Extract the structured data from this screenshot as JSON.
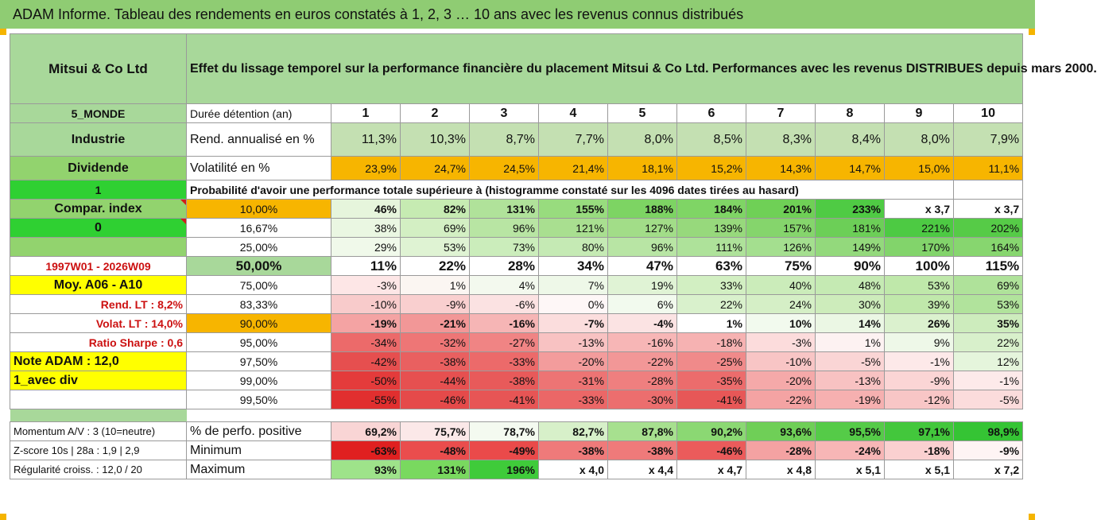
{
  "header": {
    "banner": "ADAM Informe. Tableau des rendements en euros constatés à 1, 2, 3 … 10 ans avec les revenus connus distribués"
  },
  "stock": {
    "name": "Mitsui & Co Ltd",
    "description": "Effet du lissage temporel sur la performance financière du placement Mitsui & Co Ltd. Performances avec les revenus DISTRIBUES depuis mars 2000."
  },
  "left": {
    "region": "5_MONDE",
    "sector": "Industrie",
    "type": "Dividende",
    "flag1": "1",
    "compar_label": "Compar. index",
    "flag0": "0",
    "period": "1997W01 - 2026W09",
    "moy": "Moy. A06 - A10",
    "rend_lt": "Rend. LT :    8,2%",
    "volat_lt": "Volat. LT :    14,0%",
    "sharpe": "Ratio Sharpe :    0,6",
    "note": "Note ADAM : 12,0",
    "avec_div": "1_avec div"
  },
  "years_label": "Durée détention (an)",
  "years": [
    "1",
    "2",
    "3",
    "4",
    "5",
    "6",
    "7",
    "8",
    "9",
    "10"
  ],
  "rend": {
    "label": "Rend. annualisé en %",
    "values": [
      "11,3%",
      "10,3%",
      "8,7%",
      "7,7%",
      "8,0%",
      "8,5%",
      "8,3%",
      "8,4%",
      "8,0%",
      "7,9%"
    ]
  },
  "vol": {
    "label": "Volatilité en %",
    "values": [
      "23,9%",
      "24,7%",
      "24,5%",
      "21,4%",
      "18,1%",
      "15,2%",
      "14,3%",
      "14,7%",
      "15,0%",
      "11,1%"
    ]
  },
  "prob_title": "Probabilité d'avoir une performance totale supérieure à (histogramme constaté sur les 4096 dates tirées au hasard)",
  "prob_rows": [
    {
      "p": "10,00%",
      "v": [
        "46%",
        "82%",
        "131%",
        "155%",
        "188%",
        "184%",
        "201%",
        "233%",
        "x 3,7",
        "x 3,7"
      ]
    },
    {
      "p": "16,67%",
      "v": [
        "38%",
        "69%",
        "96%",
        "121%",
        "127%",
        "139%",
        "157%",
        "181%",
        "221%",
        "202%"
      ]
    },
    {
      "p": "25,00%",
      "v": [
        "29%",
        "53%",
        "73%",
        "80%",
        "96%",
        "111%",
        "126%",
        "149%",
        "170%",
        "164%"
      ]
    },
    {
      "p": "50,00%",
      "v": [
        "11%",
        "22%",
        "28%",
        "34%",
        "47%",
        "63%",
        "75%",
        "90%",
        "100%",
        "115%"
      ]
    },
    {
      "p": "75,00%",
      "v": [
        "-3%",
        "1%",
        "4%",
        "7%",
        "19%",
        "33%",
        "40%",
        "48%",
        "53%",
        "69%"
      ]
    },
    {
      "p": "83,33%",
      "v": [
        "-10%",
        "-9%",
        "-6%",
        "0%",
        "6%",
        "22%",
        "24%",
        "30%",
        "39%",
        "53%"
      ]
    },
    {
      "p": "90,00%",
      "v": [
        "-19%",
        "-21%",
        "-16%",
        "-7%",
        "-4%",
        "1%",
        "10%",
        "14%",
        "26%",
        "35%"
      ]
    },
    {
      "p": "95,00%",
      "v": [
        "-34%",
        "-32%",
        "-27%",
        "-13%",
        "-16%",
        "-18%",
        "-3%",
        "1%",
        "9%",
        "22%"
      ]
    },
    {
      "p": "97,50%",
      "v": [
        "-42%",
        "-38%",
        "-33%",
        "-20%",
        "-22%",
        "-25%",
        "-10%",
        "-5%",
        "-1%",
        "12%"
      ]
    },
    {
      "p": "99,00%",
      "v": [
        "-50%",
        "-44%",
        "-38%",
        "-31%",
        "-28%",
        "-35%",
        "-20%",
        "-13%",
        "-9%",
        "-1%"
      ]
    },
    {
      "p": "99,50%",
      "v": [
        "-55%",
        "-46%",
        "-41%",
        "-33%",
        "-30%",
        "-41%",
        "-22%",
        "-19%",
        "-12%",
        "-5%"
      ]
    }
  ],
  "bottom": {
    "momentum": "Momentum A/V : 3 (10=neutre)",
    "zscore": "Z-score 10s | 28a : 1,9 | 2,9",
    "regularite": "Régularité croiss. : 12,0 / 20",
    "pos_label": "% de perfo. positive",
    "pos_values": [
      "69,2%",
      "75,7%",
      "78,7%",
      "82,7%",
      "87,8%",
      "90,2%",
      "93,6%",
      "95,5%",
      "97,1%",
      "98,9%"
    ],
    "min_label": "Minimum",
    "min_values": [
      "-63%",
      "-48%",
      "-49%",
      "-38%",
      "-38%",
      "-46%",
      "-28%",
      "-24%",
      "-18%",
      "-9%"
    ],
    "max_label": "Maximum",
    "max_values": [
      "93%",
      "131%",
      "196%",
      "x 4,0",
      "x 4,4",
      "x 4,7",
      "x 4,8",
      "x 5,1",
      "x 5,1",
      "x 7,2"
    ]
  },
  "cell_colors": {
    "prob": [
      [
        "#ffffff",
        "#ffffff",
        "#ffffff",
        "#ffffff",
        "#ffffff",
        "#ffffff",
        "#ffffff",
        "#ffffff",
        "#ffffff",
        "#ffffff"
      ],
      [
        "#e6f5dc",
        "#c6ebb2",
        "#b0e29a",
        "#98dc7e",
        "#7dd463",
        "#7fd565",
        "#6fd056",
        "#4fcb44",
        "#ffffff",
        "#ffffff"
      ],
      [
        "#eaf7e2",
        "#d3efc3",
        "#b8e5a3",
        "#a9df90",
        "#a2dd88",
        "#97d97c",
        "#85d56c",
        "#6ccf57",
        "#4dca43",
        "#56cb47"
      ],
      [
        "#f0f9ea",
        "#dff3d3",
        "#cbedbb",
        "#c5eab4",
        "#b8e5a4",
        "#aee29a",
        "#a4df8f",
        "#93d97c",
        "#82d46b",
        "#87d66f"
      ],
      [
        "#ffffff",
        "#ffffff",
        "#ffffff",
        "#ffffff",
        "#ffffff",
        "#ffffff",
        "#ffffff",
        "#ffffff",
        "#ffffff",
        "#ffffff"
      ],
      [
        "#fde6e6",
        "#fbf6f2",
        "#f3f9ee",
        "#eef8e8",
        "#e0f3d5",
        "#d2efc2",
        "#cbecba",
        "#c5eab3",
        "#bfe8aa",
        "#afe29a"
      ],
      [
        "#f8cbcb",
        "#f9cfcf",
        "#fbe2e2",
        "#fef7f7",
        "#f2faee",
        "#d9f1cc",
        "#d5efc6",
        "#cdecbb",
        "#c0e8ab",
        "#b1e39c"
      ],
      [
        "#f4a3a3",
        "#f29797",
        "#f6b5b5",
        "#fbdddd",
        "#fbe3e3",
        "#ffffff",
        "#f2faee",
        "#ebf7e4",
        "#dbf1ce",
        "#cdecbd"
      ],
      [
        "#ec6a6a",
        "#ee7676",
        "#f08484",
        "#f8c2c2",
        "#f7b6b6",
        "#f6b2b2",
        "#fcdcdc",
        "#fdf2f2",
        "#eef8e8",
        "#d8f0cb"
      ],
      [
        "#e64f4f",
        "#e96060",
        "#ec6a6a",
        "#f39c9c",
        "#f29797",
        "#f08a8a",
        "#f8c5c5",
        "#fad5d5",
        "#fde9e9",
        "#e5f5dc"
      ],
      [
        "#e43b3b",
        "#e65050",
        "#e85a5a",
        "#ed7474",
        "#ef7f7f",
        "#ec6c6c",
        "#f5a9a9",
        "#f8c2c2",
        "#fbd5d5",
        "#fdeaea"
      ],
      [
        "#e12f2f",
        "#e54a4a",
        "#e75555",
        "#eb6767",
        "#ec6e6e",
        "#e75757",
        "#f4a3a3",
        "#f6b0b0",
        "#f8c6c6",
        "#fbdcdc"
      ]
    ],
    "pos": [
      "#f9d5d5",
      "#fbe8e8",
      "#f4faf0",
      "#d7f0c9",
      "#a7e08f",
      "#8bd873",
      "#6fcf57",
      "#55cb48",
      "#43c73c",
      "#35c434"
    ],
    "min": [
      "#e02020",
      "#ea4d4d",
      "#ea4a4a",
      "#ef7a7a",
      "#ef7a7a",
      "#eb5b5b",
      "#f4a2a2",
      "#f7b6b6",
      "#fad0d0",
      "#fef4f4"
    ],
    "max": [
      "#9ee38a",
      "#79d95f",
      "#3fcb3a",
      "#ffffff",
      "#ffffff",
      "#ffffff",
      "#ffffff",
      "#ffffff",
      "#ffffff",
      "#ffffff"
    ]
  }
}
